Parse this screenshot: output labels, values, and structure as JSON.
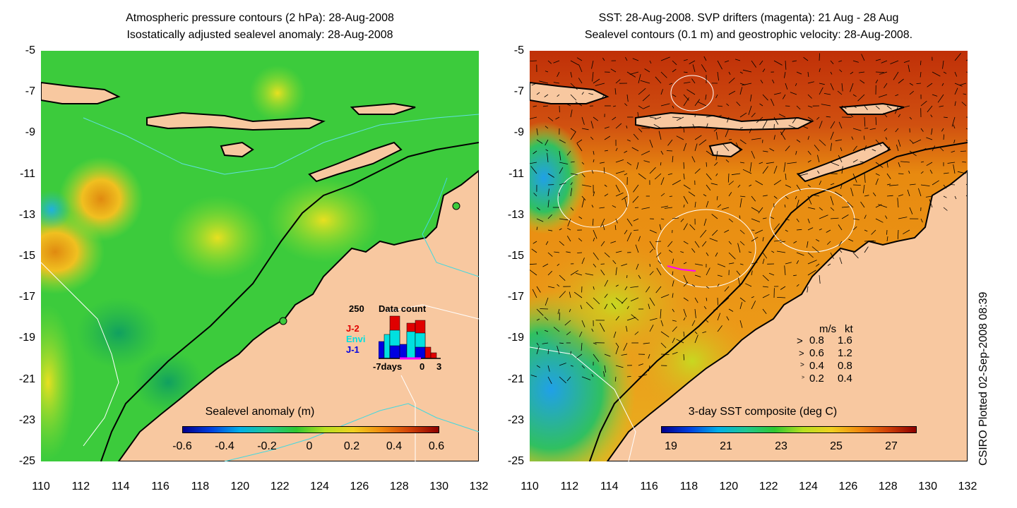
{
  "left_panel": {
    "title_line1": "Atmospheric pressure contours (2 hPa): 28-Aug-2008",
    "title_line2": "Isostatically adjusted sealevel anomaly: 28-Aug-2008",
    "colorbar_label": "Sealevel anomaly (m)",
    "colorbar_ticks": [
      "-0.6",
      "-0.4",
      "-0.2",
      "0",
      "0.2",
      "0.4",
      "0.6"
    ],
    "inset": {
      "count_label": "250",
      "title": "Data count",
      "legend": [
        {
          "label": "J-2",
          "color": "#e00000"
        },
        {
          "label": "Envi",
          "color": "#00e0e0"
        },
        {
          "label": "J-1",
          "color": "#0000e0"
        }
      ],
      "x_label_left": "-7days",
      "x_label_mid": "0",
      "x_label_right": "3"
    }
  },
  "right_panel": {
    "title_line1": "SST: 28-Aug-2008. SVP drifters (magenta): 21 Aug - 28 Aug",
    "title_line2": "Sealevel contours (0.1 m) and geostrophic velocity: 28-Aug-2008.",
    "colorbar_label": "3-day SST composite (deg C)",
    "colorbar_ticks": [
      "19",
      "21",
      "23",
      "25",
      "27"
    ],
    "speed_legend": {
      "header_ms": "m/s",
      "header_kt": "kt",
      "rows": [
        {
          "ms": "0.8",
          "kt": "1.6"
        },
        {
          "ms": "0.6",
          "kt": "1.2"
        },
        {
          "ms": "0.4",
          "kt": "0.8"
        },
        {
          "ms": "0.2",
          "kt": "0.4"
        }
      ]
    }
  },
  "axes": {
    "y_ticks": [
      "-5",
      "-7",
      "-9",
      "-11",
      "-13",
      "-15",
      "-17",
      "-19",
      "-21",
      "-23",
      "-25"
    ],
    "x_ticks": [
      "110",
      "112",
      "114",
      "116",
      "118",
      "120",
      "122",
      "124",
      "126",
      "128",
      "130",
      "132"
    ]
  },
  "watermark": "CSIRO Plotted 02-Sep-2008 08:39",
  "colors": {
    "land": "#f8c8a0",
    "ocean_left": "#3cc83c",
    "ocean_right": "#e88a10",
    "warm_right": "#c03008"
  }
}
